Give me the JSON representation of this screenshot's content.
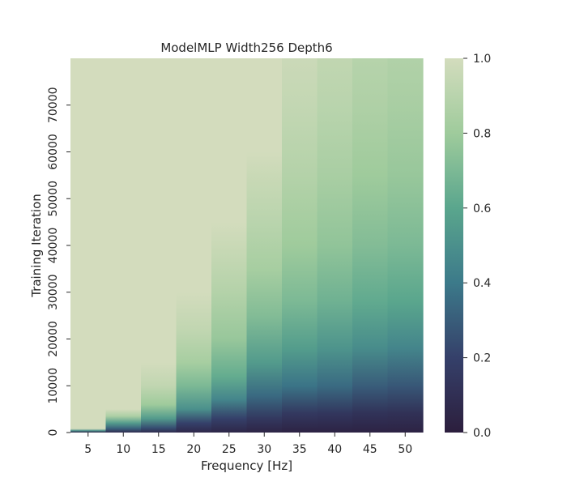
{
  "chart_data": {
    "type": "heatmap",
    "title": "ModelMLP Width256 Depth6",
    "xlabel": "Frequency [Hz]",
    "ylabel": "Training Iteration",
    "x_categories": [
      "5",
      "10",
      "15",
      "20",
      "25",
      "30",
      "35",
      "40",
      "45",
      "50"
    ],
    "y_range": [
      0,
      80000
    ],
    "y_ticks": [
      0,
      10000,
      20000,
      30000,
      40000,
      50000,
      60000,
      70000
    ],
    "y_tick_labels": [
      "0",
      "10000",
      "20000",
      "30000",
      "40000",
      "50000",
      "60000",
      "70000"
    ],
    "value_range": [
      0,
      1
    ],
    "colorbar_ticks": [
      0.0,
      0.2,
      0.4,
      0.6,
      0.8,
      1.0
    ],
    "colorbar_tick_labels": [
      "0.0",
      "0.2",
      "0.4",
      "0.6",
      "0.8",
      "1.0"
    ],
    "colormap": "crest-like (dark navy to pale sage)",
    "colormap_stops": [
      {
        "value": 0.0,
        "color": "#2c1e3d"
      },
      {
        "value": 0.2,
        "color": "#35406a"
      },
      {
        "value": 0.4,
        "color": "#3c7a8a"
      },
      {
        "value": 0.6,
        "color": "#5aa68d"
      },
      {
        "value": 0.8,
        "color": "#9fcb9c"
      },
      {
        "value": 1.0,
        "color": "#d3dcbd"
      }
    ],
    "column_profiles": [
      {
        "frequency": "5",
        "points": [
          [
            0,
            0.05
          ],
          [
            400,
            0.5
          ],
          [
            800,
            1.0
          ],
          [
            80000,
            1.0
          ]
        ]
      },
      {
        "frequency": "10",
        "points": [
          [
            0,
            0.08
          ],
          [
            800,
            0.3
          ],
          [
            2000,
            0.55
          ],
          [
            3500,
            0.85
          ],
          [
            5000,
            1.0
          ],
          [
            80000,
            1.0
          ]
        ]
      },
      {
        "frequency": "15",
        "points": [
          [
            0,
            0.08
          ],
          [
            1000,
            0.25
          ],
          [
            3000,
            0.55
          ],
          [
            6000,
            0.8
          ],
          [
            10000,
            0.93
          ],
          [
            15000,
            1.0
          ],
          [
            80000,
            1.0
          ]
        ]
      },
      {
        "frequency": "20",
        "points": [
          [
            0,
            0.06
          ],
          [
            2000,
            0.2
          ],
          [
            5000,
            0.5
          ],
          [
            10000,
            0.7
          ],
          [
            15000,
            0.83
          ],
          [
            22000,
            0.93
          ],
          [
            30000,
            1.0
          ],
          [
            80000,
            1.0
          ]
        ]
      },
      {
        "frequency": "25",
        "points": [
          [
            0,
            0.05
          ],
          [
            3000,
            0.2
          ],
          [
            7000,
            0.45
          ],
          [
            12000,
            0.63
          ],
          [
            20000,
            0.78
          ],
          [
            30000,
            0.88
          ],
          [
            40000,
            0.96
          ],
          [
            45000,
            1.0
          ],
          [
            80000,
            1.0
          ]
        ]
      },
      {
        "frequency": "30",
        "points": [
          [
            0,
            0.04
          ],
          [
            3000,
            0.15
          ],
          [
            8000,
            0.35
          ],
          [
            15000,
            0.55
          ],
          [
            25000,
            0.72
          ],
          [
            35000,
            0.83
          ],
          [
            45000,
            0.9
          ],
          [
            55000,
            0.96
          ],
          [
            60000,
            1.0
          ],
          [
            80000,
            1.0
          ]
        ]
      },
      {
        "frequency": "35",
        "points": [
          [
            0,
            0.03
          ],
          [
            4000,
            0.15
          ],
          [
            10000,
            0.38
          ],
          [
            18000,
            0.56
          ],
          [
            28000,
            0.7
          ],
          [
            40000,
            0.8
          ],
          [
            55000,
            0.88
          ],
          [
            70000,
            0.94
          ],
          [
            80000,
            0.97
          ]
        ]
      },
      {
        "frequency": "40",
        "points": [
          [
            0,
            0.03
          ],
          [
            4000,
            0.14
          ],
          [
            10000,
            0.35
          ],
          [
            18000,
            0.52
          ],
          [
            28000,
            0.66
          ],
          [
            40000,
            0.76
          ],
          [
            55000,
            0.84
          ],
          [
            70000,
            0.9
          ],
          [
            80000,
            0.93
          ]
        ]
      },
      {
        "frequency": "45",
        "points": [
          [
            0,
            0.03
          ],
          [
            4000,
            0.12
          ],
          [
            10000,
            0.3
          ],
          [
            18000,
            0.48
          ],
          [
            28000,
            0.62
          ],
          [
            40000,
            0.72
          ],
          [
            55000,
            0.8
          ],
          [
            70000,
            0.86
          ],
          [
            80000,
            0.89
          ]
        ]
      },
      {
        "frequency": "50",
        "points": [
          [
            0,
            0.03
          ],
          [
            4000,
            0.11
          ],
          [
            10000,
            0.28
          ],
          [
            18000,
            0.45
          ],
          [
            28000,
            0.6
          ],
          [
            40000,
            0.7
          ],
          [
            55000,
            0.78
          ],
          [
            70000,
            0.84
          ],
          [
            80000,
            0.87
          ]
        ]
      }
    ]
  }
}
